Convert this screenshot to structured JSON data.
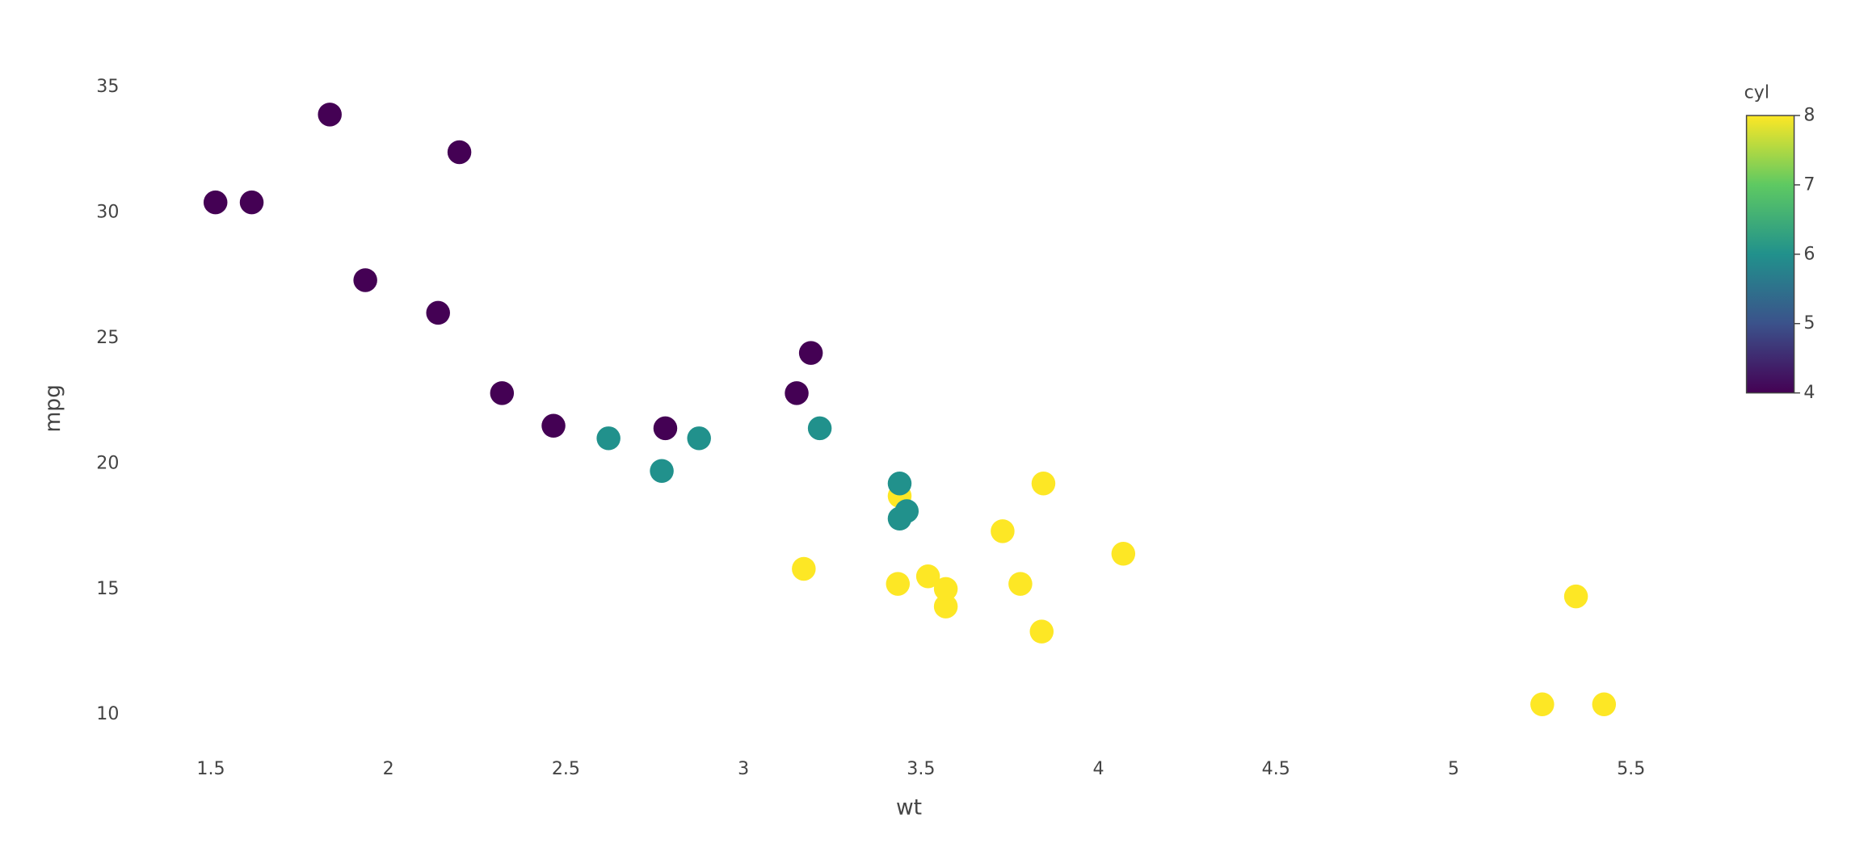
{
  "chart_data": {
    "type": "scatter",
    "x_label": "wt",
    "y_label": "mpg",
    "x": [
      2.62,
      2.875,
      2.32,
      3.215,
      3.44,
      3.46,
      3.57,
      3.19,
      3.15,
      3.44,
      3.44,
      4.07,
      3.73,
      3.78,
      5.25,
      5.424,
      5.345,
      2.2,
      1.615,
      1.835,
      2.465,
      3.52,
      3.435,
      3.84,
      3.845,
      1.935,
      2.14,
      1.513,
      3.17,
      2.77,
      3.57,
      2.78
    ],
    "values": [
      21.0,
      21.0,
      22.8,
      21.4,
      18.7,
      18.1,
      14.3,
      24.4,
      22.8,
      19.2,
      17.8,
      16.4,
      17.3,
      15.2,
      10.4,
      10.4,
      14.7,
      32.4,
      30.4,
      33.9,
      21.5,
      15.5,
      15.2,
      13.3,
      19.2,
      27.3,
      26.0,
      30.4,
      15.8,
      19.7,
      15.0,
      21.4
    ],
    "cyl": [
      6,
      6,
      4,
      6,
      8,
      6,
      8,
      4,
      4,
      6,
      6,
      8,
      8,
      8,
      8,
      8,
      8,
      4,
      4,
      4,
      4,
      8,
      8,
      8,
      8,
      4,
      4,
      4,
      8,
      6,
      8,
      4
    ],
    "xlim": [
      1.25,
      6.05
    ],
    "xticks": [
      1.5,
      2,
      2.5,
      3,
      3.5,
      4,
      4.5,
      5,
      5.5
    ],
    "ylim": [
      8.8,
      37.2
    ],
    "yticks": [
      10,
      15,
      20,
      25,
      30,
      35
    ],
    "colorbar": {
      "title": "cyl",
      "colorscale": "viridis",
      "lim": [
        4,
        8
      ],
      "ticks": [
        4,
        5,
        6,
        7,
        8
      ]
    },
    "grid": false
  }
}
